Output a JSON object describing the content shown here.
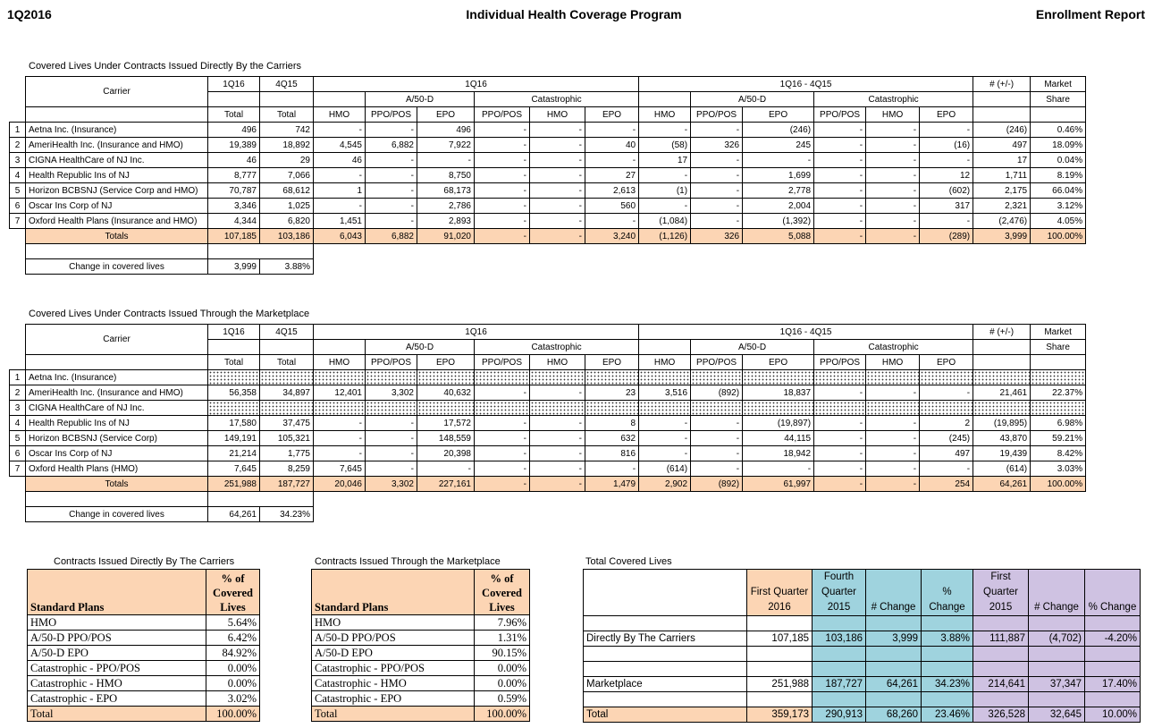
{
  "header": {
    "left": "1Q2016",
    "center": "Individual Health Coverage Program",
    "right": "Enrollment Report"
  },
  "columns": {
    "carrier": "Carrier",
    "q1": "1Q16",
    "q4": "4Q15",
    "total": "Total",
    "diff": "1Q16 - 4Q15",
    "a50d": "A/50-D",
    "cat": "Catastrophic",
    "hmo": "HMO",
    "ppo": "PPO/POS",
    "epo": "EPO",
    "change": "# (+/-)",
    "market": "Market",
    "share": "Share"
  },
  "direct": {
    "title": "Covered Lives Under Contracts Issued Directly By the Carriers",
    "rows": [
      [
        "1",
        "Aetna Inc. (Insurance)",
        "496",
        "742",
        "-",
        "-",
        "496",
        "-",
        "-",
        "-",
        "-",
        "-",
        "(246)",
        "-",
        "-",
        "-",
        "(246)",
        "0.46%"
      ],
      [
        "2",
        "AmeriHealth  Inc. (Insurance and HMO)",
        "19,389",
        "18,892",
        "4,545",
        "6,882",
        "7,922",
        "-",
        "-",
        "40",
        "(58)",
        "326",
        "245",
        "-",
        "-",
        "(16)",
        "497",
        "18.09%"
      ],
      [
        "3",
        "CIGNA HealthCare of NJ Inc.",
        "46",
        "29",
        "46",
        "-",
        "-",
        "-",
        "-",
        "-",
        "17",
        "-",
        "-",
        "-",
        "-",
        "-",
        "17",
        "0.04%"
      ],
      [
        "4",
        "Health Republic Ins of NJ",
        "8,777",
        "7,066",
        "-",
        "-",
        "8,750",
        "-",
        "-",
        "27",
        "-",
        "-",
        "1,699",
        "-",
        "-",
        "12",
        "1,711",
        "8.19%"
      ],
      [
        "5",
        "Horizon BCBSNJ (Service Corp and HMO)",
        "70,787",
        "68,612",
        "1",
        "-",
        "68,173",
        "-",
        "-",
        "2,613",
        "(1)",
        "-",
        "2,778",
        "-",
        "-",
        "(602)",
        "2,175",
        "66.04%"
      ],
      [
        "6",
        "Oscar Ins Corp of NJ",
        "3,346",
        "1,025",
        "-",
        "-",
        "2,786",
        "-",
        "-",
        "560",
        "-",
        "-",
        "2,004",
        "-",
        "-",
        "317",
        "2,321",
        "3.12%"
      ],
      [
        "7",
        "Oxford Health Plans (Insurance and HMO)",
        "4,344",
        "6,820",
        "1,451",
        "-",
        "2,893",
        "-",
        "-",
        "-",
        "(1,084)",
        "-",
        "(1,392)",
        "-",
        "-",
        "-",
        "(2,476)",
        "4.05%"
      ]
    ],
    "totals": [
      "Totals",
      "107,185",
      "103,186",
      "6,043",
      "6,882",
      "91,020",
      "-",
      "-",
      "3,240",
      "(1,126)",
      "326",
      "5,088",
      "-",
      "-",
      "(289)",
      "3,999",
      "100.00%"
    ],
    "change": [
      "Change in covered lives",
      "3,999",
      "3.88%"
    ]
  },
  "marketplace": {
    "title": "Covered Lives Under Contracts Issued Through the Marketplace",
    "rows": [
      [
        "1",
        "Aetna Inc. (Insurance)",
        null,
        null,
        null,
        null,
        null,
        null,
        null,
        null,
        null,
        null,
        null,
        null,
        null,
        null,
        null,
        null
      ],
      [
        "2",
        "AmeriHealth  Inc. (Insurance and HMO)",
        "56,358",
        "34,897",
        "12,401",
        "3,302",
        "40,632",
        "-",
        "-",
        "23",
        "3,516",
        "(892)",
        "18,837",
        "-",
        "-",
        "-",
        "21,461",
        "22.37%"
      ],
      [
        "3",
        "CIGNA HealthCare of NJ Inc.",
        null,
        null,
        null,
        null,
        null,
        null,
        null,
        null,
        null,
        null,
        null,
        null,
        null,
        null,
        null,
        null
      ],
      [
        "4",
        "Health Republic Ins of NJ",
        "17,580",
        "37,475",
        "-",
        "-",
        "17,572",
        "-",
        "-",
        "8",
        "-",
        "-",
        "(19,897)",
        "-",
        "-",
        "2",
        "(19,895)",
        "6.98%"
      ],
      [
        "5",
        "Horizon BCBSNJ (Service Corp)",
        "149,191",
        "105,321",
        "-",
        "-",
        "148,559",
        "-",
        "-",
        "632",
        "-",
        "-",
        "44,115",
        "-",
        "-",
        "(245)",
        "43,870",
        "59.21%"
      ],
      [
        "6",
        "Oscar Ins Corp of NJ",
        "21,214",
        "1,775",
        "-",
        "-",
        "20,398",
        "-",
        "-",
        "816",
        "-",
        "-",
        "18,942",
        "-",
        "-",
        "497",
        "19,439",
        "8.42%"
      ],
      [
        "7",
        "Oxford Health Plans (HMO)",
        "7,645",
        "8,259",
        "7,645",
        "-",
        "-",
        "-",
        "-",
        "-",
        "(614)",
        "-",
        "-",
        "-",
        "-",
        "-",
        "(614)",
        "3.03%"
      ]
    ],
    "totals": [
      "Totals",
      "251,988",
      "187,727",
      "20,046",
      "3,302",
      "227,161",
      "-",
      "-",
      "1,479",
      "2,902",
      "(892)",
      "61,997",
      "-",
      "-",
      "254",
      "64,261",
      "100.00%"
    ],
    "change": [
      "Change in covered lives",
      "64,261",
      "34.23%"
    ]
  },
  "summary_direct": {
    "title": "Contracts Issued Directly By The Carriers",
    "header": [
      "Standard Plans",
      "% of Covered Lives"
    ],
    "rows": [
      [
        "HMO",
        "5.64%"
      ],
      [
        "A/50-D PPO/POS",
        "6.42%"
      ],
      [
        "A/50-D EPO",
        "84.92%"
      ],
      [
        "Catastrophic - PPO/POS",
        "0.00%"
      ],
      [
        "Catastrophic - HMO",
        "0.00%"
      ],
      [
        "Catastrophic - EPO",
        "3.02%"
      ],
      [
        "Total",
        "100.00%"
      ]
    ]
  },
  "summary_marketplace": {
    "title": "Contracts Issued Through the Marketplace",
    "header": [
      "Standard Plans",
      "% of Covered Lives"
    ],
    "rows": [
      [
        "HMO",
        "7.96%"
      ],
      [
        "A/50-D PPO/POS",
        "1.31%"
      ],
      [
        "A/50-D EPO",
        "90.15%"
      ],
      [
        "Catastrophic - PPO/POS",
        "0.00%"
      ],
      [
        "Catastrophic - HMO",
        "0.00%"
      ],
      [
        "Catastrophic - EPO",
        "0.59%"
      ],
      [
        "Total",
        "100.00%"
      ]
    ]
  },
  "total_lives": {
    "title": "Total Covered Lives",
    "header": [
      null,
      "First Quarter 2016",
      "Fourth Quarter 2015",
      "# Change",
      "% Change",
      "First Quarter 2015",
      "# Change",
      "% Change"
    ],
    "rows": [
      [
        null,
        null,
        null,
        null,
        null,
        null,
        null,
        null
      ],
      [
        "Directly By The Carriers",
        "107,185",
        "103,186",
        "3,999",
        "3.88%",
        "111,887",
        "(4,702)",
        "-4.20%"
      ],
      [
        null,
        null,
        null,
        null,
        null,
        null,
        null,
        null
      ],
      [
        null,
        null,
        null,
        null,
        null,
        null,
        null,
        null
      ],
      [
        "Marketplace",
        "251,988",
        "187,727",
        "64,261",
        "34.23%",
        "214,641",
        "37,347",
        "17.40%"
      ],
      [
        null,
        null,
        null,
        null,
        null,
        null,
        null,
        null
      ],
      [
        "Total",
        "359,173",
        "290,913",
        "68,260",
        "23.46%",
        "326,528",
        "32,645",
        "10.00%"
      ]
    ]
  }
}
